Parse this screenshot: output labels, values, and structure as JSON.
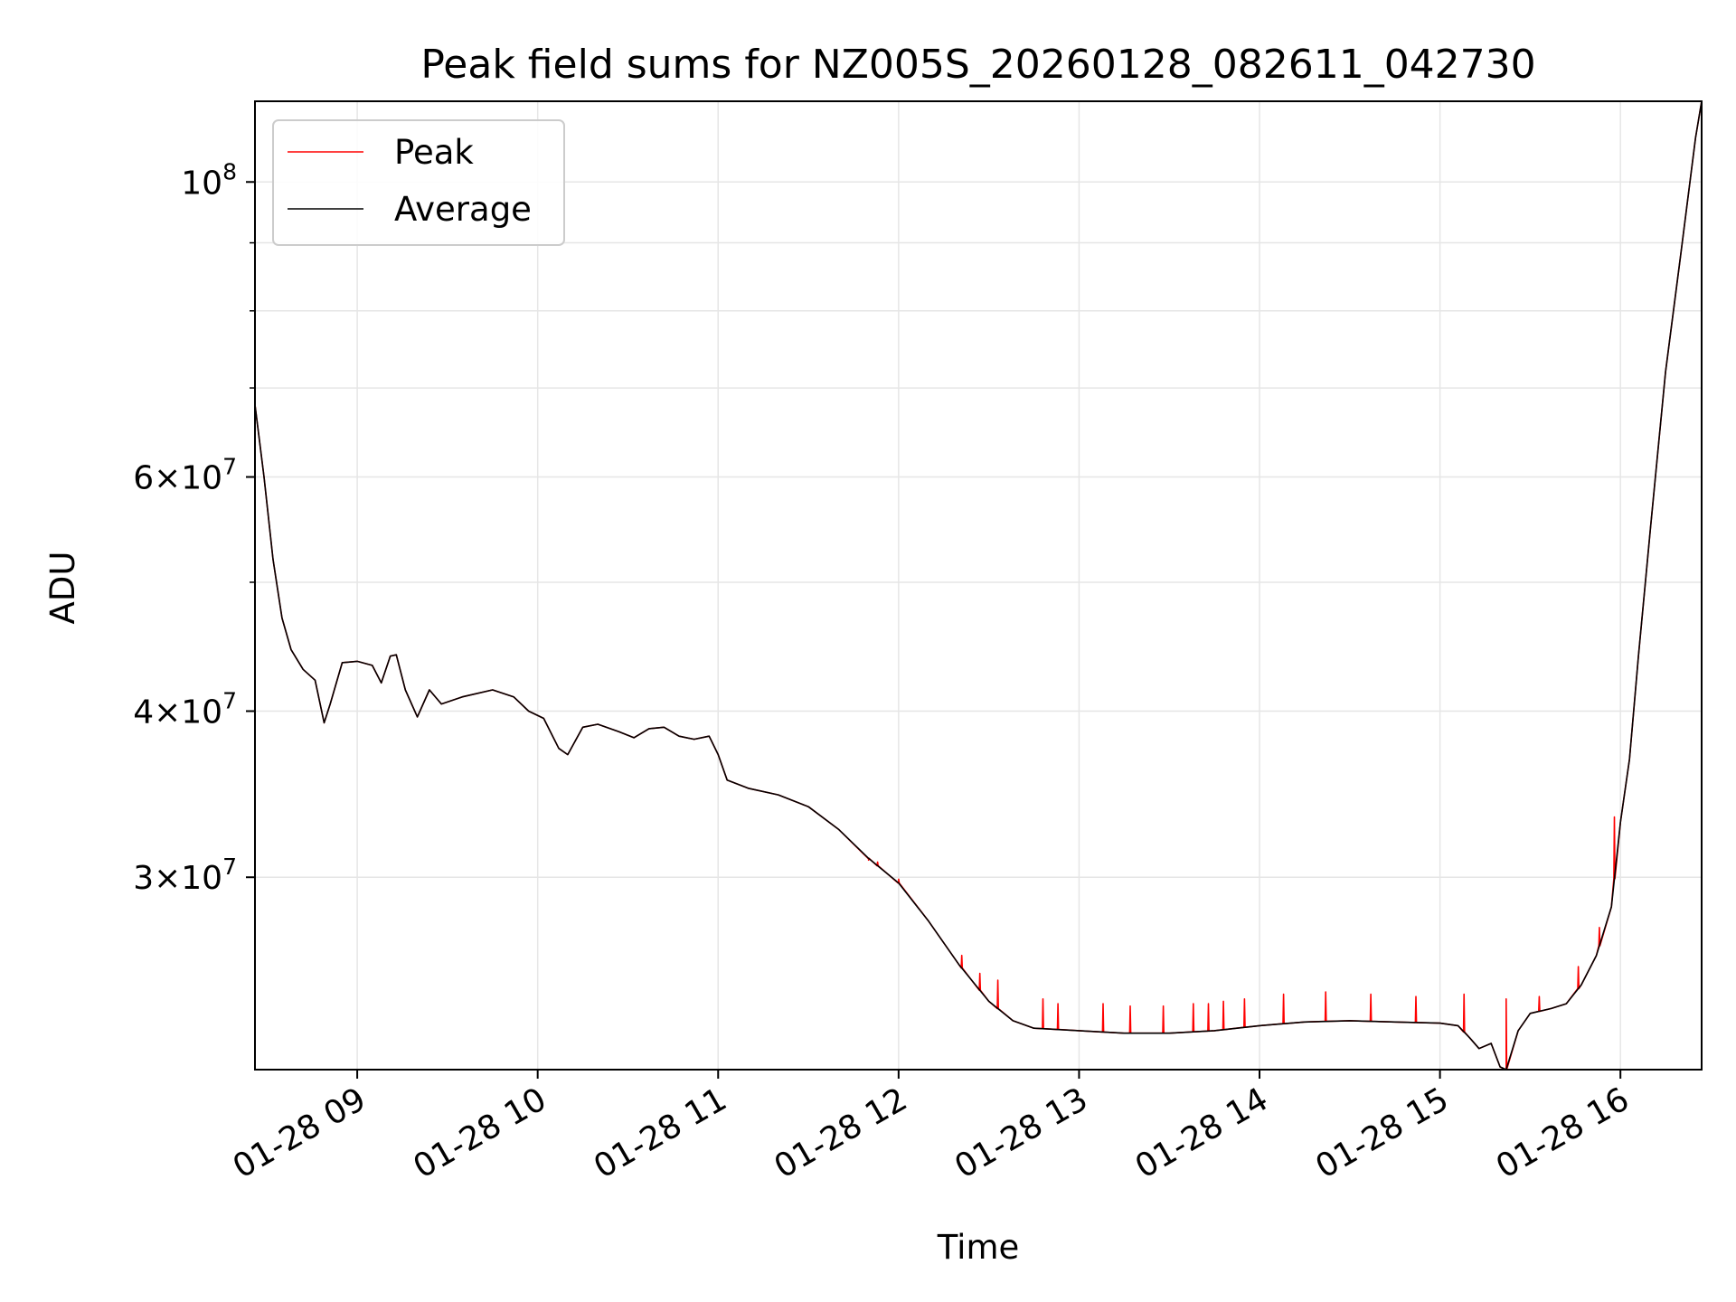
{
  "chart_data": {
    "type": "line",
    "title": "Peak field sums for NZ005S_20260128_082611_042730",
    "xlabel": "Time",
    "ylabel": "ADU",
    "yscale": "log",
    "xlim": [
      "2026-01-28 08:26",
      "2026-01-28 16:27"
    ],
    "ylim": [
      21500000,
      115000000
    ],
    "grid": true,
    "legend_position": "upper-left",
    "x_ticks": [
      "01-28 09",
      "01-28 10",
      "01-28 11",
      "01-28 12",
      "01-28 13",
      "01-28 14",
      "01-28 15",
      "01-28 16"
    ],
    "y_tick_labels": [
      {
        "value": 100000000,
        "base": "10",
        "exp": "8",
        "coef": ""
      },
      {
        "value": 60000000,
        "base": "10",
        "exp": "7",
        "coef": "6×"
      },
      {
        "value": 40000000,
        "base": "10",
        "exp": "7",
        "coef": "4×"
      },
      {
        "value": 30000000,
        "base": "10",
        "exp": "7",
        "coef": "3×"
      }
    ],
    "minor_y_ticks": [
      50000000,
      70000000,
      80000000,
      90000000
    ],
    "series": [
      {
        "name": "Peak",
        "color": "#ff0000",
        "spikes": [
          [
            "11:50",
            30900000
          ],
          [
            "11:53",
            30800000
          ],
          [
            "12:00",
            29900000
          ],
          [
            "12:21",
            26200000
          ],
          [
            "12:27",
            25400000
          ],
          [
            "12:33",
            25100000
          ],
          [
            "12:48",
            24300000
          ],
          [
            "12:53",
            24100000
          ],
          [
            "13:08",
            24100000
          ],
          [
            "13:17",
            24000000
          ],
          [
            "13:28",
            24000000
          ],
          [
            "13:38",
            24100000
          ],
          [
            "13:43",
            24100000
          ],
          [
            "13:48",
            24200000
          ],
          [
            "13:55",
            24300000
          ],
          [
            "14:08",
            24500000
          ],
          [
            "14:22",
            24600000
          ],
          [
            "14:37",
            24500000
          ],
          [
            "14:52",
            24400000
          ],
          [
            "15:08",
            24500000
          ],
          [
            "15:22",
            24300000
          ],
          [
            "15:33",
            24400000
          ],
          [
            "15:46",
            25700000
          ],
          [
            "15:53",
            27500000
          ],
          [
            "15:58",
            33300000
          ]
        ]
      },
      {
        "name": "Average",
        "color": "#000000",
        "points": [
          [
            "08:26",
            68000000
          ],
          [
            "08:29",
            60000000
          ],
          [
            "08:32",
            52000000
          ],
          [
            "08:35",
            47000000
          ],
          [
            "08:38",
            44500000
          ],
          [
            "08:42",
            43000000
          ],
          [
            "08:46",
            42200000
          ],
          [
            "08:49",
            39200000
          ],
          [
            "08:51",
            40500000
          ],
          [
            "08:55",
            43500000
          ],
          [
            "09:00",
            43600000
          ],
          [
            "09:05",
            43300000
          ],
          [
            "09:08",
            42000000
          ],
          [
            "09:11",
            44000000
          ],
          [
            "09:13",
            44100000
          ],
          [
            "09:16",
            41500000
          ],
          [
            "09:20",
            39600000
          ],
          [
            "09:24",
            41500000
          ],
          [
            "09:28",
            40500000
          ],
          [
            "09:35",
            41000000
          ],
          [
            "09:45",
            41500000
          ],
          [
            "09:52",
            41000000
          ],
          [
            "09:57",
            40000000
          ],
          [
            "10:02",
            39500000
          ],
          [
            "10:07",
            37500000
          ],
          [
            "10:10",
            37100000
          ],
          [
            "10:15",
            38900000
          ],
          [
            "10:20",
            39100000
          ],
          [
            "10:27",
            38600000
          ],
          [
            "10:32",
            38200000
          ],
          [
            "10:37",
            38800000
          ],
          [
            "10:42",
            38900000
          ],
          [
            "10:47",
            38300000
          ],
          [
            "10:52",
            38100000
          ],
          [
            "10:57",
            38300000
          ],
          [
            "11:00",
            37100000
          ],
          [
            "11:03",
            35500000
          ],
          [
            "11:10",
            35000000
          ],
          [
            "11:20",
            34600000
          ],
          [
            "11:30",
            33900000
          ],
          [
            "11:40",
            32600000
          ],
          [
            "11:50",
            31000000
          ],
          [
            "12:00",
            29700000
          ],
          [
            "12:10",
            27800000
          ],
          [
            "12:20",
            25800000
          ],
          [
            "12:30",
            24200000
          ],
          [
            "12:38",
            23400000
          ],
          [
            "12:45",
            23100000
          ],
          [
            "13:00",
            23000000
          ],
          [
            "13:15",
            22900000
          ],
          [
            "13:30",
            22900000
          ],
          [
            "13:45",
            23000000
          ],
          [
            "14:00",
            23200000
          ],
          [
            "14:15",
            23350000
          ],
          [
            "14:30",
            23400000
          ],
          [
            "14:45",
            23350000
          ],
          [
            "15:00",
            23300000
          ],
          [
            "15:06",
            23200000
          ],
          [
            "15:10",
            22700000
          ],
          [
            "15:13",
            22300000
          ],
          [
            "15:17",
            22500000
          ],
          [
            "15:20",
            21600000
          ],
          [
            "15:22",
            21500000
          ],
          [
            "15:26",
            23000000
          ],
          [
            "15:30",
            23700000
          ],
          [
            "15:37",
            23900000
          ],
          [
            "15:42",
            24100000
          ],
          [
            "15:47",
            24900000
          ],
          [
            "15:52",
            26200000
          ],
          [
            "15:57",
            28500000
          ],
          [
            "16:00",
            33000000
          ],
          [
            "16:03",
            36800000
          ],
          [
            "16:06",
            44000000
          ],
          [
            "16:10",
            55000000
          ],
          [
            "16:15",
            72000000
          ],
          [
            "16:20",
            88000000
          ],
          [
            "16:25",
            108000000
          ],
          [
            "16:27",
            115000000
          ]
        ]
      }
    ]
  }
}
